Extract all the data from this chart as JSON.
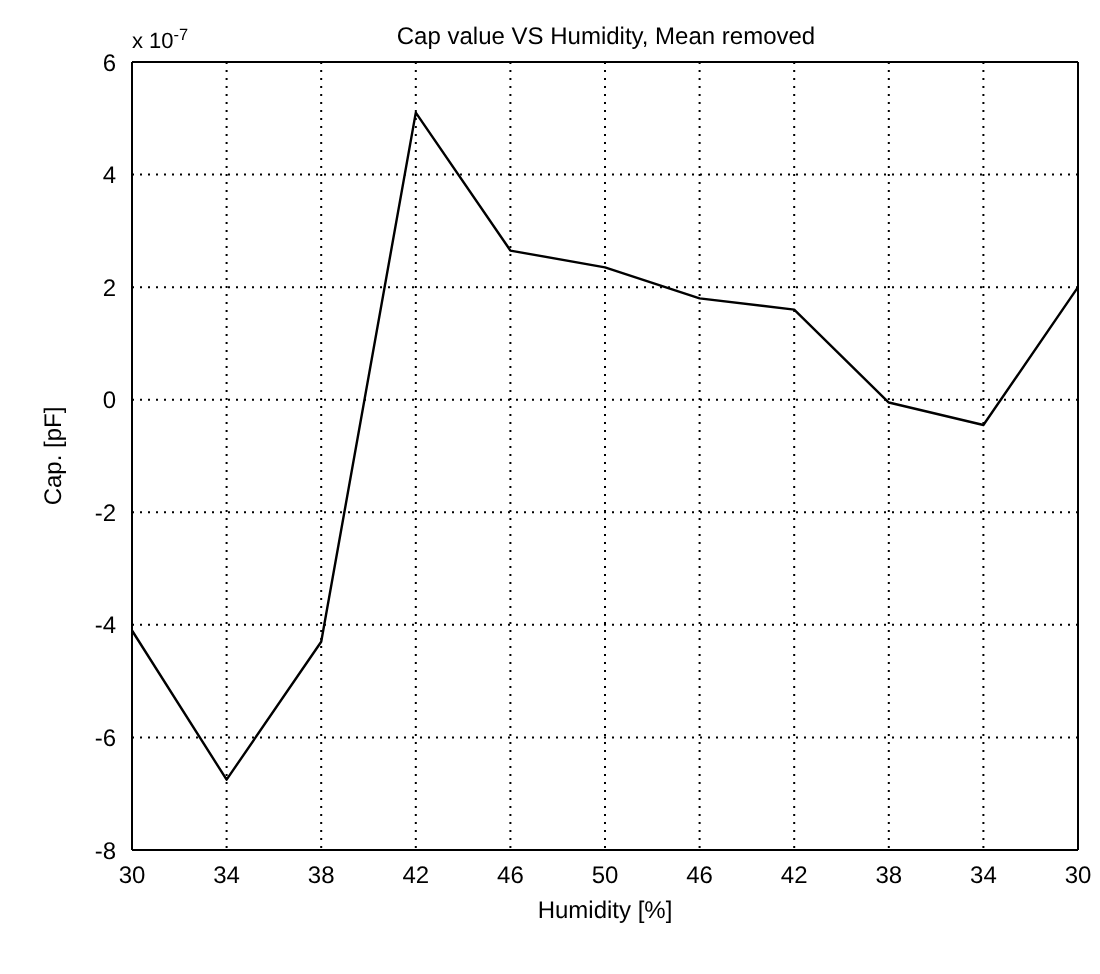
{
  "chart_data": {
    "type": "line",
    "title": "Cap value VS Humidity, Mean removed",
    "xlabel": "Humidity [%]",
    "ylabel": "Cap. [pF]",
    "annotations": [
      "x 10$^{-7}$"
    ],
    "categories": [
      "30",
      "34",
      "38",
      "42",
      "46",
      "50",
      "46",
      "42",
      "38",
      "34",
      "30"
    ],
    "series": [
      {
        "color": "#000000",
        "values": [
          -4.1,
          -6.75,
          -4.3,
          5.1,
          2.65,
          2.35,
          1.8,
          1.6,
          -0.05,
          -0.45,
          2.0
        ]
      }
    ],
    "ylim": [
      -8,
      6
    ],
    "yticks": [
      -8,
      -6,
      -4,
      -2,
      0,
      2,
      4,
      6
    ],
    "grid": true,
    "legend": false,
    "marker": "none",
    "line_style": "solid"
  }
}
